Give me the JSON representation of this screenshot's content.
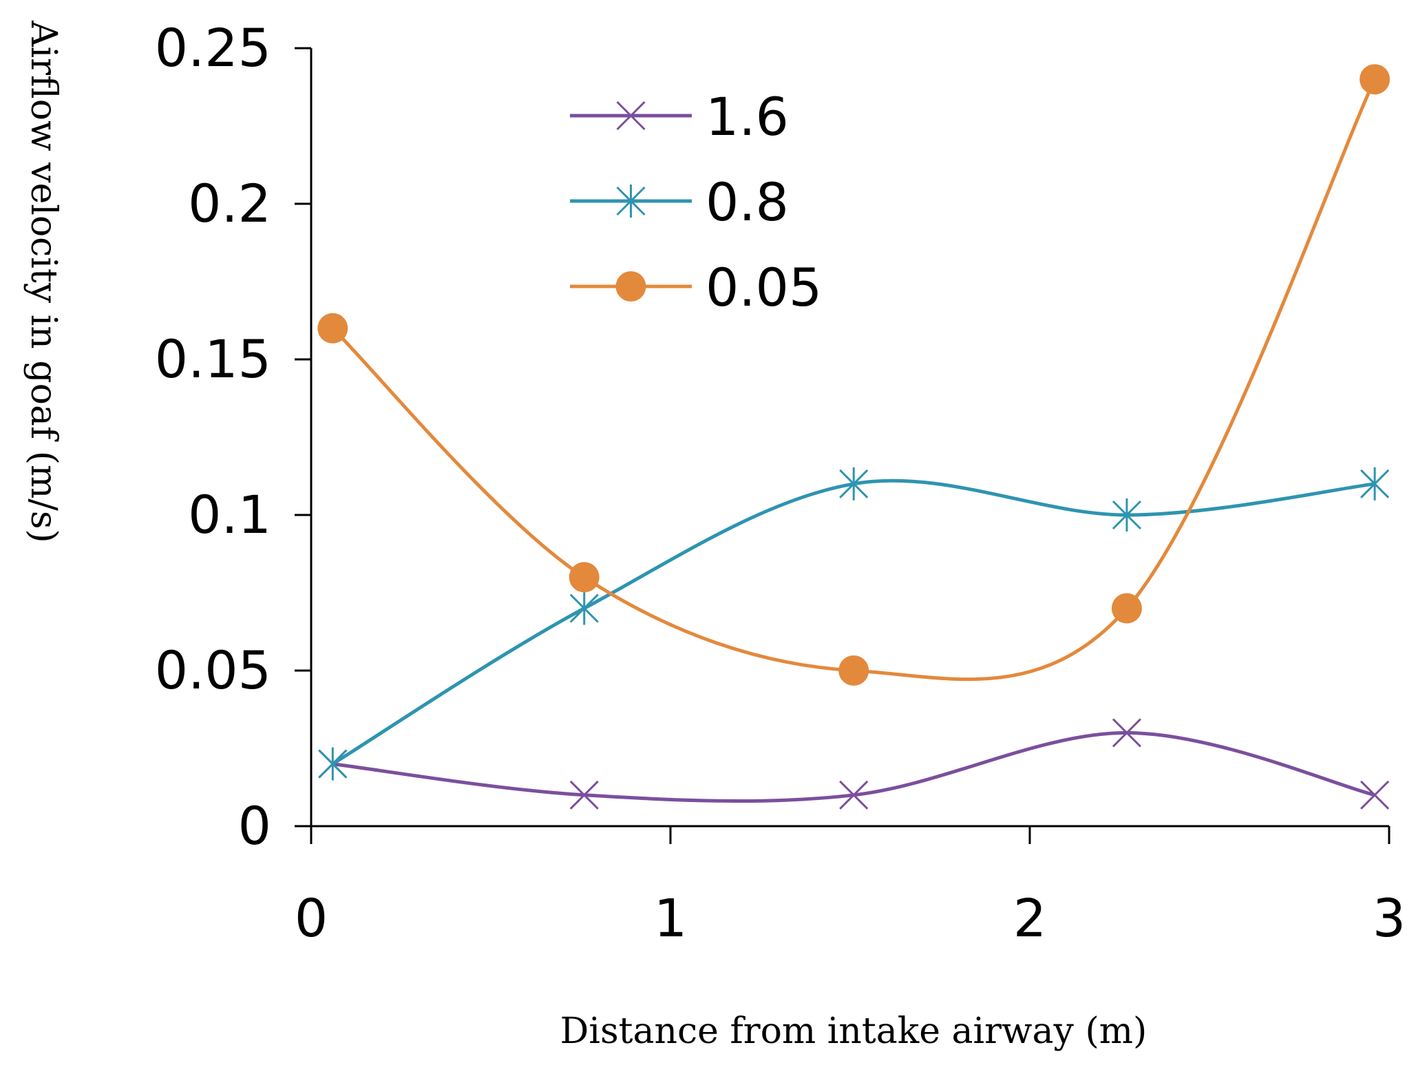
{
  "chart_data": {
    "type": "line",
    "smooth": true,
    "title": "",
    "xlabel": "Distance from intake airway (m)",
    "ylabel": "Airflow velocity in goaf (m/s)",
    "xlim": [
      0,
      3
    ],
    "ylim": [
      0,
      0.25
    ],
    "xticks": [
      0,
      1,
      2,
      3
    ],
    "xtick_labels": [
      "0",
      "1",
      "2",
      "3"
    ],
    "yticks": [
      0,
      0.05,
      0.1,
      0.15,
      0.2,
      0.25
    ],
    "ytick_labels": [
      "0",
      "0.05",
      "0.1",
      "0.15",
      "0.2",
      "0.25"
    ],
    "grid": false,
    "legend_position": "top-center",
    "series": [
      {
        "name": "1.6",
        "color": "#7b4f9d",
        "marker": "x",
        "x": [
          0.06,
          0.76,
          1.51,
          2.27,
          2.96
        ],
        "values": [
          0.02,
          0.01,
          0.01,
          0.03,
          0.01
        ]
      },
      {
        "name": "0.8",
        "color": "#2e94b0",
        "marker": "star",
        "x": [
          0.06,
          0.76,
          1.51,
          2.27,
          2.96
        ],
        "values": [
          0.02,
          0.07,
          0.11,
          0.1,
          0.11
        ]
      },
      {
        "name": "0.05",
        "color": "#e3893c",
        "marker": "circle",
        "x": [
          0.06,
          0.76,
          1.51,
          2.27,
          2.96
        ],
        "values": [
          0.16,
          0.08,
          0.05,
          0.07,
          0.24
        ]
      }
    ]
  }
}
